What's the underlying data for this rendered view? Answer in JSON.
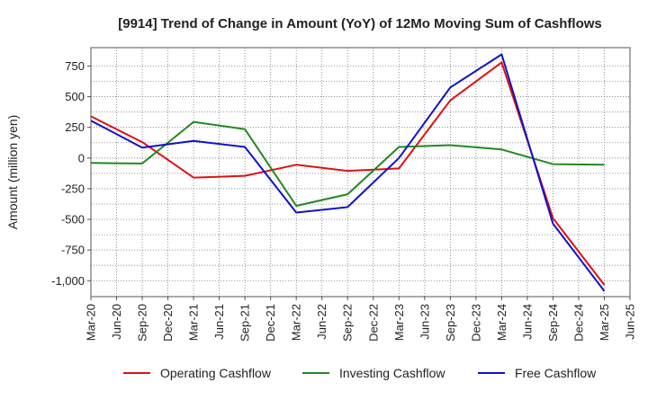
{
  "chart_data": {
    "type": "line",
    "title": "[9914]  Trend of Change in Amount (YoY) of 12Mo Moving Sum of Cashflows",
    "xlabel": "",
    "ylabel": "Amount (million yen)",
    "ylim": [
      -1130,
      900
    ],
    "yticks": [
      750,
      500,
      250,
      0,
      -250,
      -500,
      -750,
      -1000
    ],
    "ytick_labels": [
      "750",
      "500",
      "250",
      "0",
      "-250",
      "-500",
      "-750",
      "-1,000"
    ],
    "categories": [
      "Mar-20",
      "Jun-20",
      "Sep-20",
      "Dec-20",
      "Mar-21",
      "Jun-21",
      "Sep-21",
      "Dec-21",
      "Mar-22",
      "Jun-22",
      "Sep-22",
      "Dec-22",
      "Mar-23",
      "Jun-23",
      "Sep-23",
      "Dec-23",
      "Mar-24",
      "Jun-24",
      "Sep-24",
      "Dec-24",
      "Mar-25",
      "Jun-25"
    ],
    "grid": true,
    "legend_position": "bottom",
    "series": [
      {
        "name": "Operating Cashflow",
        "color": "#dd1111",
        "values": [
          340,
          null,
          130,
          null,
          -160,
          null,
          -145,
          null,
          -55,
          null,
          -105,
          null,
          -85,
          null,
          470,
          null,
          780,
          null,
          -490,
          null,
          -1035,
          null
        ]
      },
      {
        "name": "Investing Cashflow",
        "color": "#228822",
        "values": [
          -40,
          null,
          -45,
          null,
          295,
          null,
          235,
          null,
          -390,
          null,
          -295,
          null,
          90,
          null,
          105,
          null,
          70,
          null,
          -50,
          null,
          -55,
          null
        ]
      },
      {
        "name": "Free Cashflow",
        "color": "#1111cc",
        "values": [
          305,
          null,
          85,
          null,
          140,
          null,
          90,
          null,
          -445,
          null,
          -400,
          null,
          0,
          null,
          575,
          null,
          845,
          null,
          -535,
          null,
          -1085,
          null
        ]
      }
    ]
  }
}
